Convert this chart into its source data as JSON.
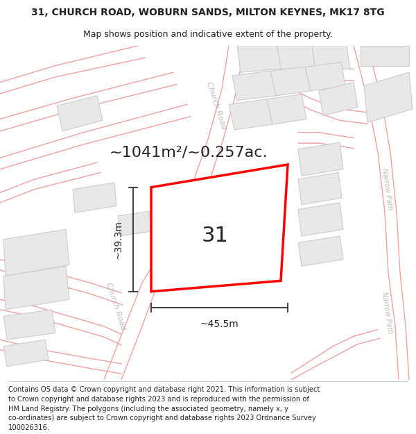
{
  "title_line1": "31, CHURCH ROAD, WOBURN SANDS, MILTON KEYNES, MK17 8TG",
  "title_line2": "Map shows position and indicative extent of the property.",
  "footer_lines": [
    "Contains OS data © Crown copyright and database right 2021. This information is subject",
    "to Crown copyright and database rights 2023 and is reproduced with the permission of",
    "HM Land Registry. The polygons (including the associated geometry, namely x, y",
    "co-ordinates) are subject to Crown copyright and database rights 2023 Ordnance Survey",
    "100026316."
  ],
  "area_text": "~1041m²/~0.257ac.",
  "label_31": "31",
  "dim_width": "~45.5m",
  "dim_height": "~39.3m",
  "map_bg": "#ffffff",
  "road_line_color": "#f0a0a0",
  "building_face": "#e8e8e8",
  "building_edge": "#cccccc",
  "highlight_color": "#ff0000",
  "dim_line_color": "#444444",
  "text_dark": "#222222",
  "road_label_color": "#bbbbbb",
  "title_fontsize": 10,
  "subtitle_fontsize": 9,
  "footer_fontsize": 7.2,
  "area_fontsize": 16,
  "label_fontsize": 22,
  "dim_fontsize": 10,
  "road_label_fontsize": 8
}
